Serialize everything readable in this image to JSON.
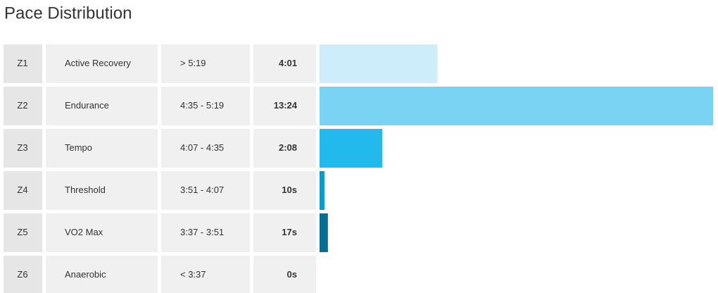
{
  "chart_data": {
    "type": "bar",
    "title": "Pace Distribution",
    "categories": [
      "Z1",
      "Z2",
      "Z3",
      "Z4",
      "Z5",
      "Z6"
    ],
    "zone_names": [
      "Active Recovery",
      "Endurance",
      "Tempo",
      "Threshold",
      "VO2 Max",
      "Anaerobic"
    ],
    "ranges": [
      "> 5:19",
      "4:35 - 5:19",
      "4:07 - 4:35",
      "3:51 - 4:07",
      "3:37 - 3:51",
      "< 3:37"
    ],
    "values": [
      241,
      804,
      128,
      10,
      17,
      0
    ],
    "value_labels": [
      "4:01",
      "13:24",
      "2:08",
      "10s",
      "17s",
      "0s"
    ],
    "colors": [
      "#cdedfb",
      "#7bd3f3",
      "#22b9ec",
      "#0b9bca",
      "#066f91",
      "#04506a"
    ],
    "xlim": [
      0,
      804
    ]
  }
}
